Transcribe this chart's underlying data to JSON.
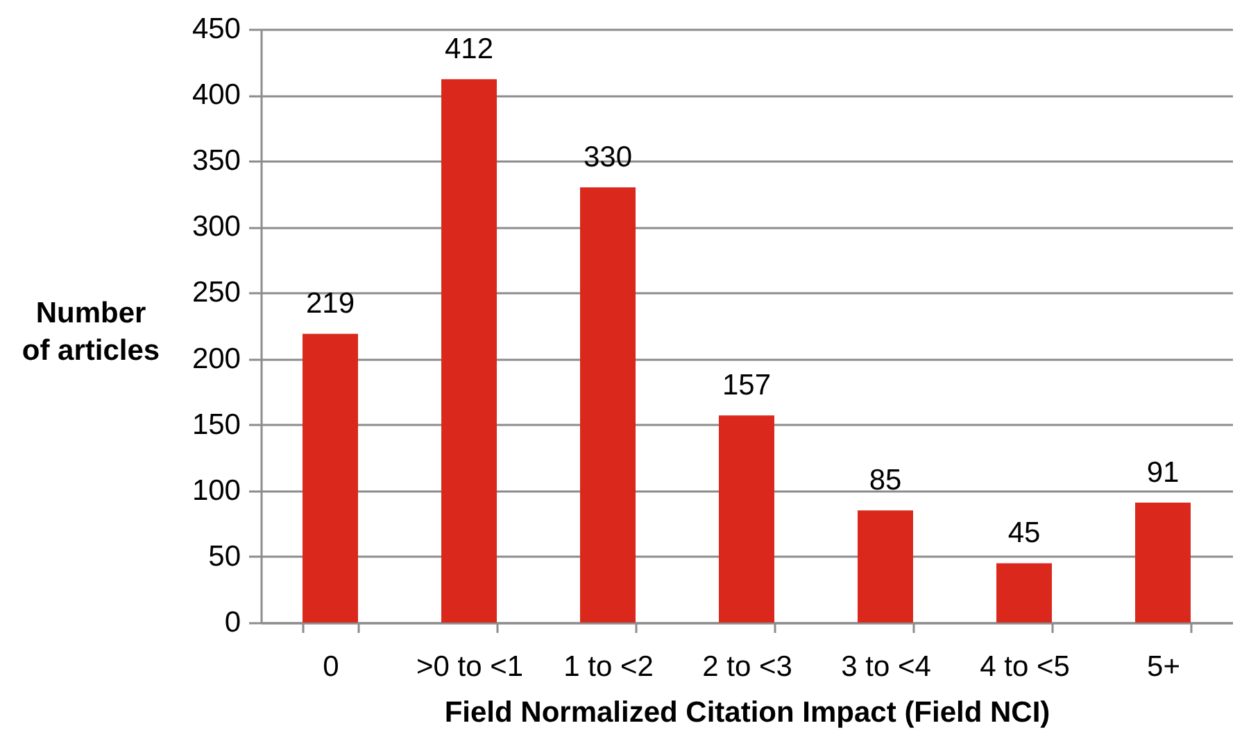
{
  "chart_data": {
    "type": "bar",
    "xlabel": "Field Normalized Citation Impact (Field NCI)",
    "ylabel": "Number of articles",
    "categories": [
      "0",
      ">0 to <1",
      "1 to <2",
      "2 to <3",
      "3 to <4",
      "4 to <5",
      "5+"
    ],
    "values": [
      219,
      412,
      330,
      157,
      85,
      45,
      91
    ],
    "color": "#da291c",
    "ylim": [
      0,
      450
    ],
    "yticks": [
      0,
      50,
      100,
      150,
      200,
      250,
      300,
      350,
      400,
      450
    ],
    "grid": "y",
    "data_labels": true
  }
}
